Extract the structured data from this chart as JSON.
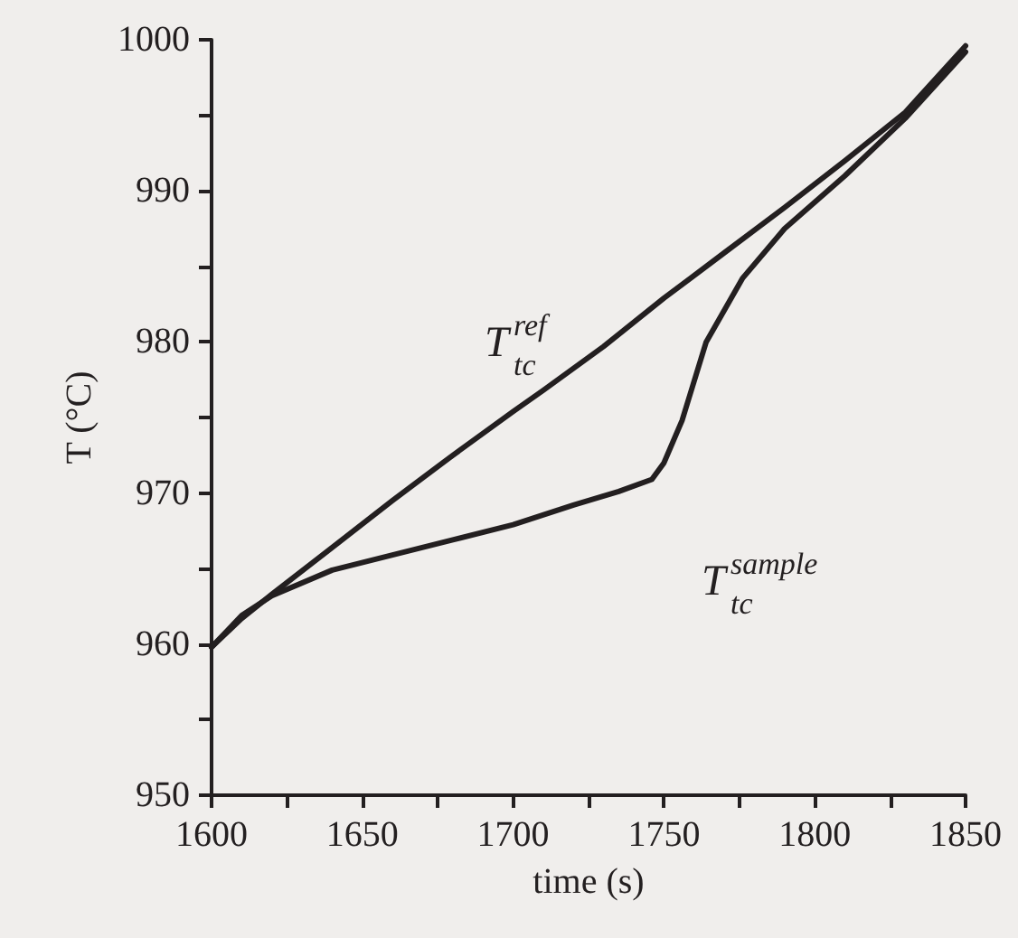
{
  "chart_data": {
    "type": "line",
    "xlabel": "time (s)",
    "ylabel": "T (°C)",
    "xlim": [
      1600,
      1850
    ],
    "xticks": [
      1600,
      {
        "value": 1625,
        "label": null
      },
      1650,
      {
        "value": 1675,
        "label": null
      },
      1700,
      {
        "value": 1725,
        "label": null
      },
      1750,
      {
        "value": 1775,
        "label": null
      },
      1800,
      {
        "value": 1825,
        "label": null
      },
      1850
    ],
    "ylim": [
      950,
      1000
    ],
    "yticks": [
      950,
      {
        "value": 955,
        "label": null
      },
      960,
      {
        "value": 965,
        "label": null
      },
      970,
      {
        "value": 975,
        "label": null
      },
      980,
      {
        "value": 985,
        "label": null
      },
      990,
      {
        "value": 995,
        "label": null
      },
      1000
    ],
    "marker": "none",
    "line_style": "solid",
    "series": [
      {
        "color": "#231f20",
        "x": [
          1600,
          1610,
          1620,
          1640,
          1660,
          1680,
          1700,
          1710,
          1730,
          1750,
          1770,
          1790,
          1810,
          1830,
          1850
        ],
        "values": [
          959.8,
          961.7,
          963.3,
          966.4,
          969.5,
          972.5,
          975.4,
          976.8,
          979.7,
          982.9,
          985.9,
          988.9,
          992.0,
          995.2,
          999.6
        ]
      },
      {
        "color": "#231f20",
        "x": [
          1600,
          1610,
          1620,
          1640,
          1660,
          1680,
          1700,
          1720,
          1735,
          1746,
          1750,
          1756,
          1764,
          1776,
          1790,
          1810,
          1830,
          1850
        ],
        "values": [
          959.8,
          961.9,
          963.2,
          964.9,
          965.9,
          966.9,
          967.9,
          969.2,
          970.1,
          970.9,
          972.0,
          974.8,
          980.0,
          984.2,
          987.5,
          991.0,
          994.8,
          999.2
        ]
      }
    ],
    "annotations": [
      "T$^{ref}$$_{tc}$",
      "T$^{sample}$$_{tc}$"
    ]
  }
}
